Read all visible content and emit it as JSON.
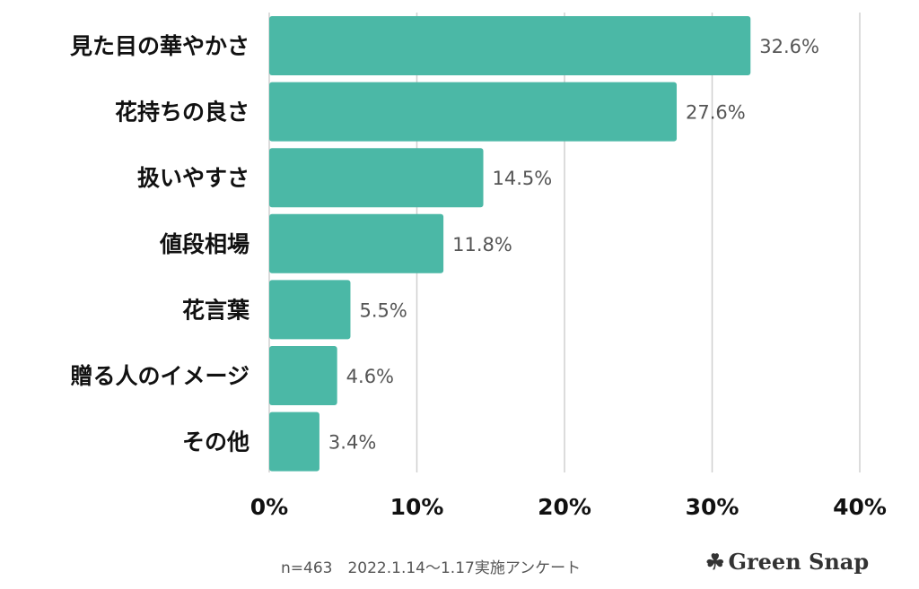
{
  "chart_data": {
    "type": "bar",
    "orientation": "horizontal",
    "categories": [
      "見た目の華やかさ",
      "花持ちの良さ",
      "扱いやすさ",
      "値段相場",
      "花言葉",
      "贈る人のイメージ",
      "その他"
    ],
    "values": [
      32.6,
      27.6,
      14.5,
      11.8,
      5.5,
      4.6,
      3.4
    ],
    "data_labels": [
      "32.6%",
      "27.6%",
      "14.5%",
      "11.8%",
      "5.5%",
      "4.6%",
      "3.4%"
    ],
    "xlim": [
      0,
      40
    ],
    "x_ticks": [
      "0%",
      "10%",
      "20%",
      "30%",
      "40%"
    ],
    "grid": "vertical",
    "bar_color": "#4bb8a6"
  },
  "footer": {
    "note": "n=463　2022.1.14～1.17実施アンケート",
    "logo": "Green Snap"
  }
}
